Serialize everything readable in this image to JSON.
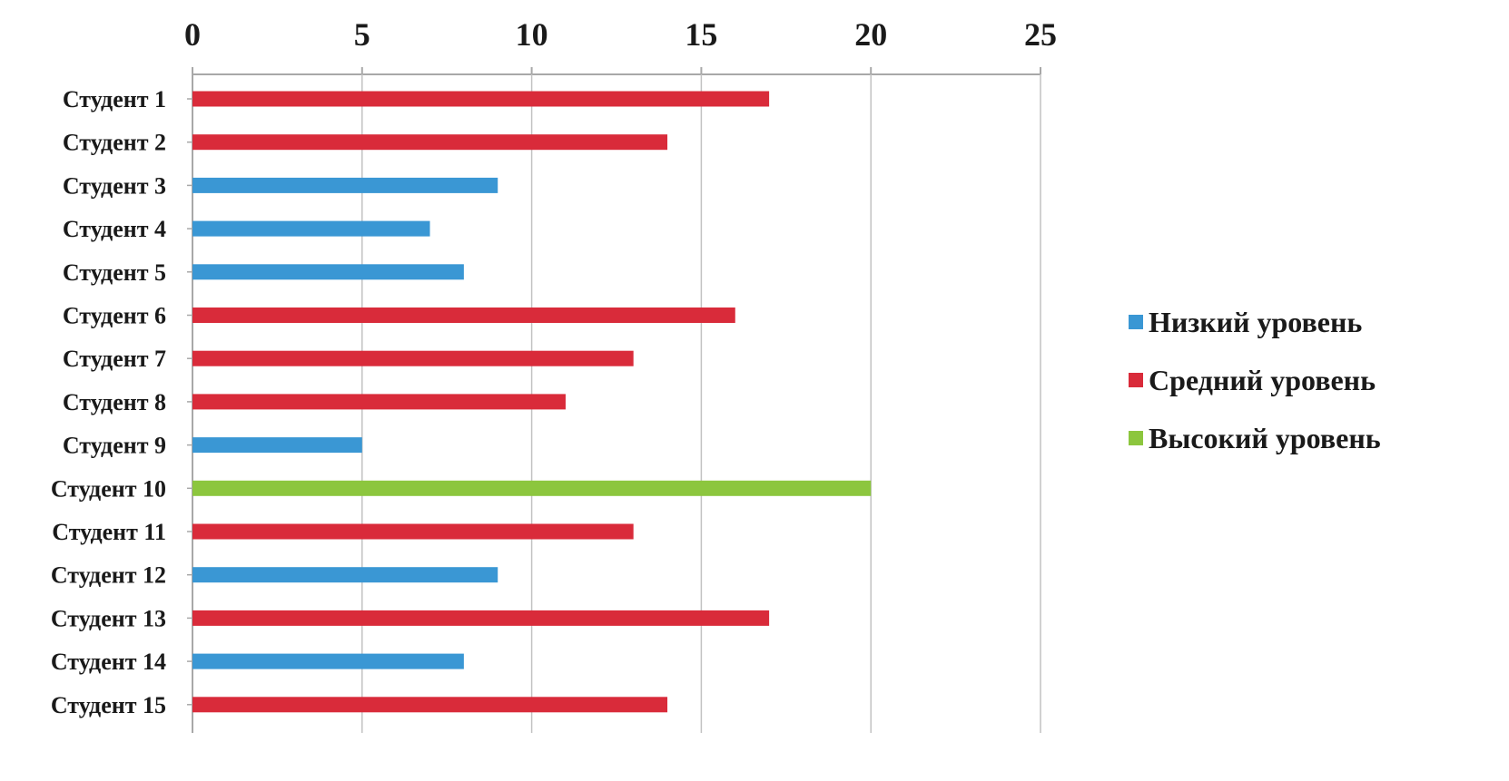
{
  "chart_data": {
    "type": "bar",
    "orientation": "horizontal",
    "categories": [
      "Студент 1",
      "Студент 2",
      "Студент 3",
      "Студент 4",
      "Студент 5",
      "Студент 6",
      "Студент 7",
      "Студент 8",
      "Студент 9",
      "Студент 10",
      "Студент 11",
      "Студент 12",
      "Студент 13",
      "Студент 14",
      "Студент 15"
    ],
    "values": [
      17,
      14,
      9,
      7,
      8,
      16,
      13,
      11,
      5,
      20,
      13,
      9,
      17,
      8,
      14
    ],
    "levels": [
      "Средний уровень",
      "Средний уровень",
      "Низкий уровень",
      "Низкий уровень",
      "Низкий уровень",
      "Средний уровень",
      "Средний уровень",
      "Средний уровень",
      "Низкий уровень",
      "Высокий уровень",
      "Средний уровень",
      "Низкий уровень",
      "Средний уровень",
      "Низкий уровень",
      "Средний уровень"
    ],
    "series": [
      {
        "name": "Низкий уровень",
        "color": "#3a97d4"
      },
      {
        "name": "Средний уровень",
        "color": "#d92b3a"
      },
      {
        "name": "Высокий уровень",
        "color": "#8cc63e"
      }
    ],
    "xlim": [
      0,
      25
    ],
    "xticks": [
      "0",
      "5",
      "10",
      "15",
      "20",
      "25"
    ],
    "x_axis_position": "top",
    "grid": "vertical",
    "legend_position": "right",
    "title": "",
    "xlabel": "",
    "ylabel": ""
  }
}
